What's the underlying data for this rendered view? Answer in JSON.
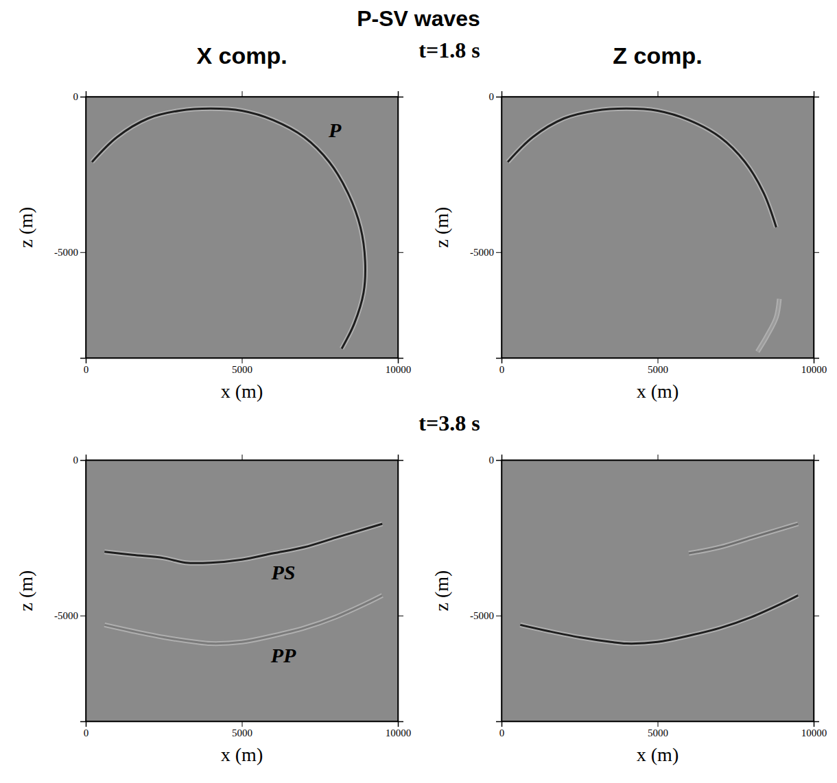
{
  "figure": {
    "title": "P-SV waves",
    "time_labels": [
      "t=1.8 s",
      "t=3.8 s"
    ]
  },
  "chart_data": [
    {
      "type": "line",
      "title": "X comp.",
      "xlabel": "x (m)",
      "ylabel": "z (m)",
      "xlim": [
        0,
        10000
      ],
      "ylim": [
        -8400,
        0
      ],
      "xticks": [
        0,
        5000,
        10000
      ],
      "yticks": [
        -5000,
        0
      ],
      "series": [
        {
          "color": "#1e1e1e",
          "line_style": "solid",
          "x": [
            200,
            1000,
            2000,
            3000,
            4000,
            5000,
            6000,
            7000,
            7800,
            8400,
            8800,
            8950,
            8900,
            8600,
            8200
          ],
          "values": [
            -2100,
            -1300,
            -700,
            -450,
            -380,
            -450,
            -750,
            -1300,
            -2100,
            -3100,
            -4200,
            -5300,
            -6300,
            -7300,
            -8100
          ]
        }
      ],
      "annotations": [
        {
          "text": "P",
          "x": 7980,
          "y": -1150
        }
      ]
    },
    {
      "type": "line",
      "title": "Z comp.",
      "xlabel": "x (m)",
      "ylabel": "z (m)",
      "xlim": [
        0,
        10000
      ],
      "ylim": [
        -8400,
        0
      ],
      "xticks": [
        0,
        5000,
        10000
      ],
      "yticks": [
        -5000,
        0
      ],
      "series": [
        {
          "color": "#1e1e1e",
          "line_style": "solid",
          "x": [
            200,
            1000,
            2000,
            3000,
            4000,
            5000,
            6000,
            7000,
            7800,
            8400,
            8800
          ],
          "values": [
            -2100,
            -1300,
            -700,
            -450,
            -380,
            -450,
            -750,
            -1300,
            -2100,
            -3100,
            -4200
          ]
        },
        {
          "color": "#9c9c9c",
          "line_style": "solid",
          "x": [
            8900,
            8800,
            8500,
            8200
          ],
          "values": [
            -6500,
            -7100,
            -7700,
            -8200
          ]
        }
      ]
    },
    {
      "type": "line",
      "xlabel": "x (m)",
      "ylabel": "z (m)",
      "xlim": [
        0,
        10000
      ],
      "ylim": [
        -8400,
        0
      ],
      "xticks": [
        0,
        5000,
        10000
      ],
      "yticks": [
        -5000,
        0
      ],
      "series": [
        {
          "color": "#1e1e1e",
          "line_style": "solid",
          "x": [
            600,
            1500,
            2500,
            3200,
            4000,
            5000,
            6000,
            7000,
            8000,
            9000,
            9500
          ],
          "values": [
            -2950,
            -3050,
            -3150,
            -3300,
            -3300,
            -3200,
            -3000,
            -2800,
            -2500,
            -2200,
            -2050
          ]
        },
        {
          "color": "#7a7a7a",
          "line_style": "solid",
          "x": [
            600,
            1500,
            2500,
            3500,
            4000,
            5000,
            6000,
            7000,
            8000,
            9000,
            9500
          ],
          "values": [
            -5300,
            -5500,
            -5700,
            -5850,
            -5900,
            -5850,
            -5650,
            -5400,
            -5050,
            -4600,
            -4350
          ]
        }
      ],
      "annotations": [
        {
          "text": "PS",
          "x": 6330,
          "y": -3690
        },
        {
          "text": "PP",
          "x": 6330,
          "y": -6350
        }
      ]
    },
    {
      "type": "line",
      "xlabel": "x (m)",
      "ylabel": "z (m)",
      "xlim": [
        0,
        10000
      ],
      "ylim": [
        -8400,
        0
      ],
      "xticks": [
        0,
        5000,
        10000
      ],
      "yticks": [
        -5000,
        0
      ],
      "series": [
        {
          "color": "#6e6e6e",
          "line_style": "solid",
          "x": [
            6000,
            7000,
            8000,
            9000,
            9500
          ],
          "values": [
            -3000,
            -2800,
            -2500,
            -2200,
            -2050
          ]
        },
        {
          "color": "#1e1e1e",
          "line_style": "solid",
          "x": [
            600,
            1500,
            2500,
            3500,
            4000,
            5000,
            6000,
            7000,
            8000,
            9000,
            9500
          ],
          "values": [
            -5300,
            -5500,
            -5700,
            -5850,
            -5900,
            -5850,
            -5650,
            -5400,
            -5050,
            -4600,
            -4350
          ]
        }
      ]
    }
  ]
}
